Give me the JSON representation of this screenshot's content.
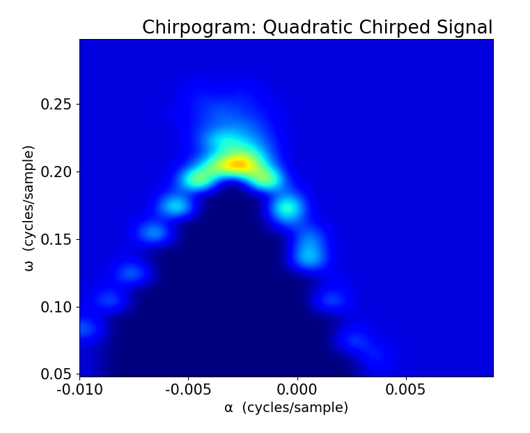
{
  "chart_data": {
    "type": "heatmap",
    "title": "Chirpogram: Quadratic Chirped Signal",
    "x_label": "α  (cycles/sample)",
    "y_label": "ω  (cycles/sample)",
    "xlim": [
      -0.01,
      0.009
    ],
    "ylim": [
      0.048,
      0.298
    ],
    "xticks": [
      {
        "value": -0.01,
        "label": "-0.010"
      },
      {
        "value": -0.005,
        "label": "-0.005"
      },
      {
        "value": 0.0,
        "label": "0.000"
      },
      {
        "value": 0.005,
        "label": "0.005"
      }
    ],
    "yticks": [
      0.05,
      {
        "value": 0.1,
        "label": "0.10"
      },
      0.15,
      {
        "value": 0.2,
        "label": "0.20"
      },
      0.25
    ],
    "cells": [
      [
        0.12,
        0.04,
        0.04,
        0.04,
        0.04,
        0.04,
        0.04,
        0.04,
        0.04,
        0.04,
        0.04,
        0.04,
        0.04,
        0.15,
        0.12,
        0.12,
        0.12,
        0.12,
        0.12
      ],
      [
        0.12,
        0.04,
        0.04,
        0.04,
        0.04,
        0.04,
        0.04,
        0.04,
        0.04,
        0.04,
        0.04,
        0.04,
        0.04,
        0.25,
        0.12,
        0.12,
        0.12,
        0.12,
        0.12
      ],
      [
        0.12,
        0.04,
        0.04,
        0.04,
        0.04,
        0.04,
        0.04,
        0.04,
        0.04,
        0.04,
        0.04,
        0.04,
        0.3,
        0.15,
        0.12,
        0.12,
        0.12,
        0.12,
        0.12
      ],
      [
        0.3,
        0.04,
        0.04,
        0.04,
        0.04,
        0.04,
        0.04,
        0.04,
        0.04,
        0.04,
        0.04,
        0.04,
        0.18,
        0.12,
        0.12,
        0.12,
        0.12,
        0.12,
        0.12
      ],
      [
        0.15,
        0.04,
        0.04,
        0.04,
        0.04,
        0.04,
        0.04,
        0.04,
        0.04,
        0.04,
        0.04,
        0.04,
        0.12,
        0.12,
        0.12,
        0.12,
        0.12,
        0.12,
        0.12
      ],
      [
        0.12,
        0.35,
        0.04,
        0.04,
        0.04,
        0.04,
        0.04,
        0.04,
        0.04,
        0.04,
        0.04,
        0.35,
        0.12,
        0.12,
        0.12,
        0.12,
        0.12,
        0.12,
        0.12
      ],
      [
        0.12,
        0.18,
        0.04,
        0.04,
        0.04,
        0.04,
        0.04,
        0.04,
        0.04,
        0.04,
        0.04,
        0.18,
        0.12,
        0.12,
        0.12,
        0.12,
        0.12,
        0.12,
        0.12
      ],
      [
        0.12,
        0.12,
        0.4,
        0.04,
        0.04,
        0.04,
        0.04,
        0.04,
        0.04,
        0.04,
        0.04,
        0.15,
        0.12,
        0.12,
        0.12,
        0.12,
        0.12,
        0.12,
        0.12
      ],
      [
        0.12,
        0.12,
        0.18,
        0.04,
        0.04,
        0.04,
        0.04,
        0.04,
        0.04,
        0.04,
        0.5,
        0.12,
        0.12,
        0.12,
        0.12,
        0.12,
        0.12,
        0.12,
        0.12
      ],
      [
        0.12,
        0.12,
        0.12,
        0.04,
        0.04,
        0.04,
        0.04,
        0.04,
        0.04,
        0.04,
        0.45,
        0.12,
        0.12,
        0.12,
        0.12,
        0.12,
        0.12,
        0.12,
        0.12
      ],
      [
        0.12,
        0.12,
        0.12,
        0.5,
        0.04,
        0.04,
        0.04,
        0.04,
        0.04,
        0.04,
        0.35,
        0.12,
        0.12,
        0.12,
        0.12,
        0.12,
        0.12,
        0.12,
        0.12
      ],
      [
        0.12,
        0.12,
        0.12,
        0.2,
        0.04,
        0.04,
        0.04,
        0.04,
        0.04,
        0.35,
        0.15,
        0.12,
        0.12,
        0.12,
        0.12,
        0.12,
        0.12,
        0.12,
        0.12
      ],
      [
        0.12,
        0.12,
        0.12,
        0.12,
        0.65,
        0.04,
        0.04,
        0.04,
        0.04,
        0.7,
        0.12,
        0.12,
        0.12,
        0.12,
        0.12,
        0.12,
        0.12,
        0.12,
        0.12
      ],
      [
        0.12,
        0.12,
        0.12,
        0.12,
        0.25,
        0.04,
        0.04,
        0.04,
        0.04,
        0.3,
        0.12,
        0.12,
        0.12,
        0.12,
        0.12,
        0.12,
        0.12,
        0.12,
        0.12
      ],
      [
        0.12,
        0.12,
        0.12,
        0.12,
        0.15,
        0.9,
        0.04,
        0.04,
        0.9,
        0.15,
        0.12,
        0.12,
        0.12,
        0.12,
        0.12,
        0.12,
        0.12,
        0.12,
        0.12
      ],
      [
        0.12,
        0.12,
        0.12,
        0.12,
        0.12,
        0.3,
        0.8,
        1.0,
        0.4,
        0.12,
        0.12,
        0.12,
        0.12,
        0.12,
        0.12,
        0.12,
        0.12,
        0.12,
        0.12
      ],
      [
        0.12,
        0.12,
        0.12,
        0.12,
        0.12,
        0.18,
        0.35,
        0.6,
        0.3,
        0.12,
        0.12,
        0.12,
        0.12,
        0.12,
        0.12,
        0.12,
        0.12,
        0.12,
        0.12
      ],
      [
        0.12,
        0.12,
        0.12,
        0.12,
        0.12,
        0.2,
        0.5,
        0.35,
        0.25,
        0.12,
        0.12,
        0.12,
        0.12,
        0.12,
        0.12,
        0.12,
        0.12,
        0.12,
        0.12
      ],
      [
        0.12,
        0.12,
        0.12,
        0.12,
        0.12,
        0.2,
        0.25,
        0.3,
        0.2,
        0.12,
        0.12,
        0.12,
        0.12,
        0.12,
        0.12,
        0.12,
        0.12,
        0.12,
        0.12
      ],
      [
        0.12,
        0.12,
        0.12,
        0.12,
        0.15,
        0.18,
        0.28,
        0.2,
        0.18,
        0.12,
        0.12,
        0.12,
        0.12,
        0.12,
        0.12,
        0.12,
        0.12,
        0.12,
        0.12
      ],
      [
        0.12,
        0.12,
        0.12,
        0.12,
        0.12,
        0.2,
        0.18,
        0.2,
        0.15,
        0.12,
        0.12,
        0.12,
        0.12,
        0.12,
        0.12,
        0.12,
        0.12,
        0.12,
        0.12
      ],
      [
        0.12,
        0.12,
        0.12,
        0.12,
        0.12,
        0.18,
        0.12,
        0.18,
        0.12,
        0.12,
        0.12,
        0.12,
        0.12,
        0.12,
        0.12,
        0.12,
        0.12,
        0.12,
        0.12
      ],
      [
        0.12,
        0.12,
        0.12,
        0.12,
        0.12,
        0.12,
        0.12,
        0.12,
        0.12,
        0.12,
        0.12,
        0.12,
        0.12,
        0.12,
        0.12,
        0.12,
        0.12,
        0.12,
        0.12
      ],
      [
        0.12,
        0.12,
        0.12,
        0.12,
        0.12,
        0.12,
        0.12,
        0.12,
        0.12,
        0.12,
        0.12,
        0.12,
        0.12,
        0.12,
        0.12,
        0.12,
        0.12,
        0.12,
        0.12
      ],
      [
        0.12,
        0.12,
        0.12,
        0.12,
        0.12,
        0.12,
        0.12,
        0.12,
        0.12,
        0.12,
        0.12,
        0.12,
        0.12,
        0.12,
        0.12,
        0.12,
        0.12,
        0.12,
        0.12
      ]
    ]
  }
}
